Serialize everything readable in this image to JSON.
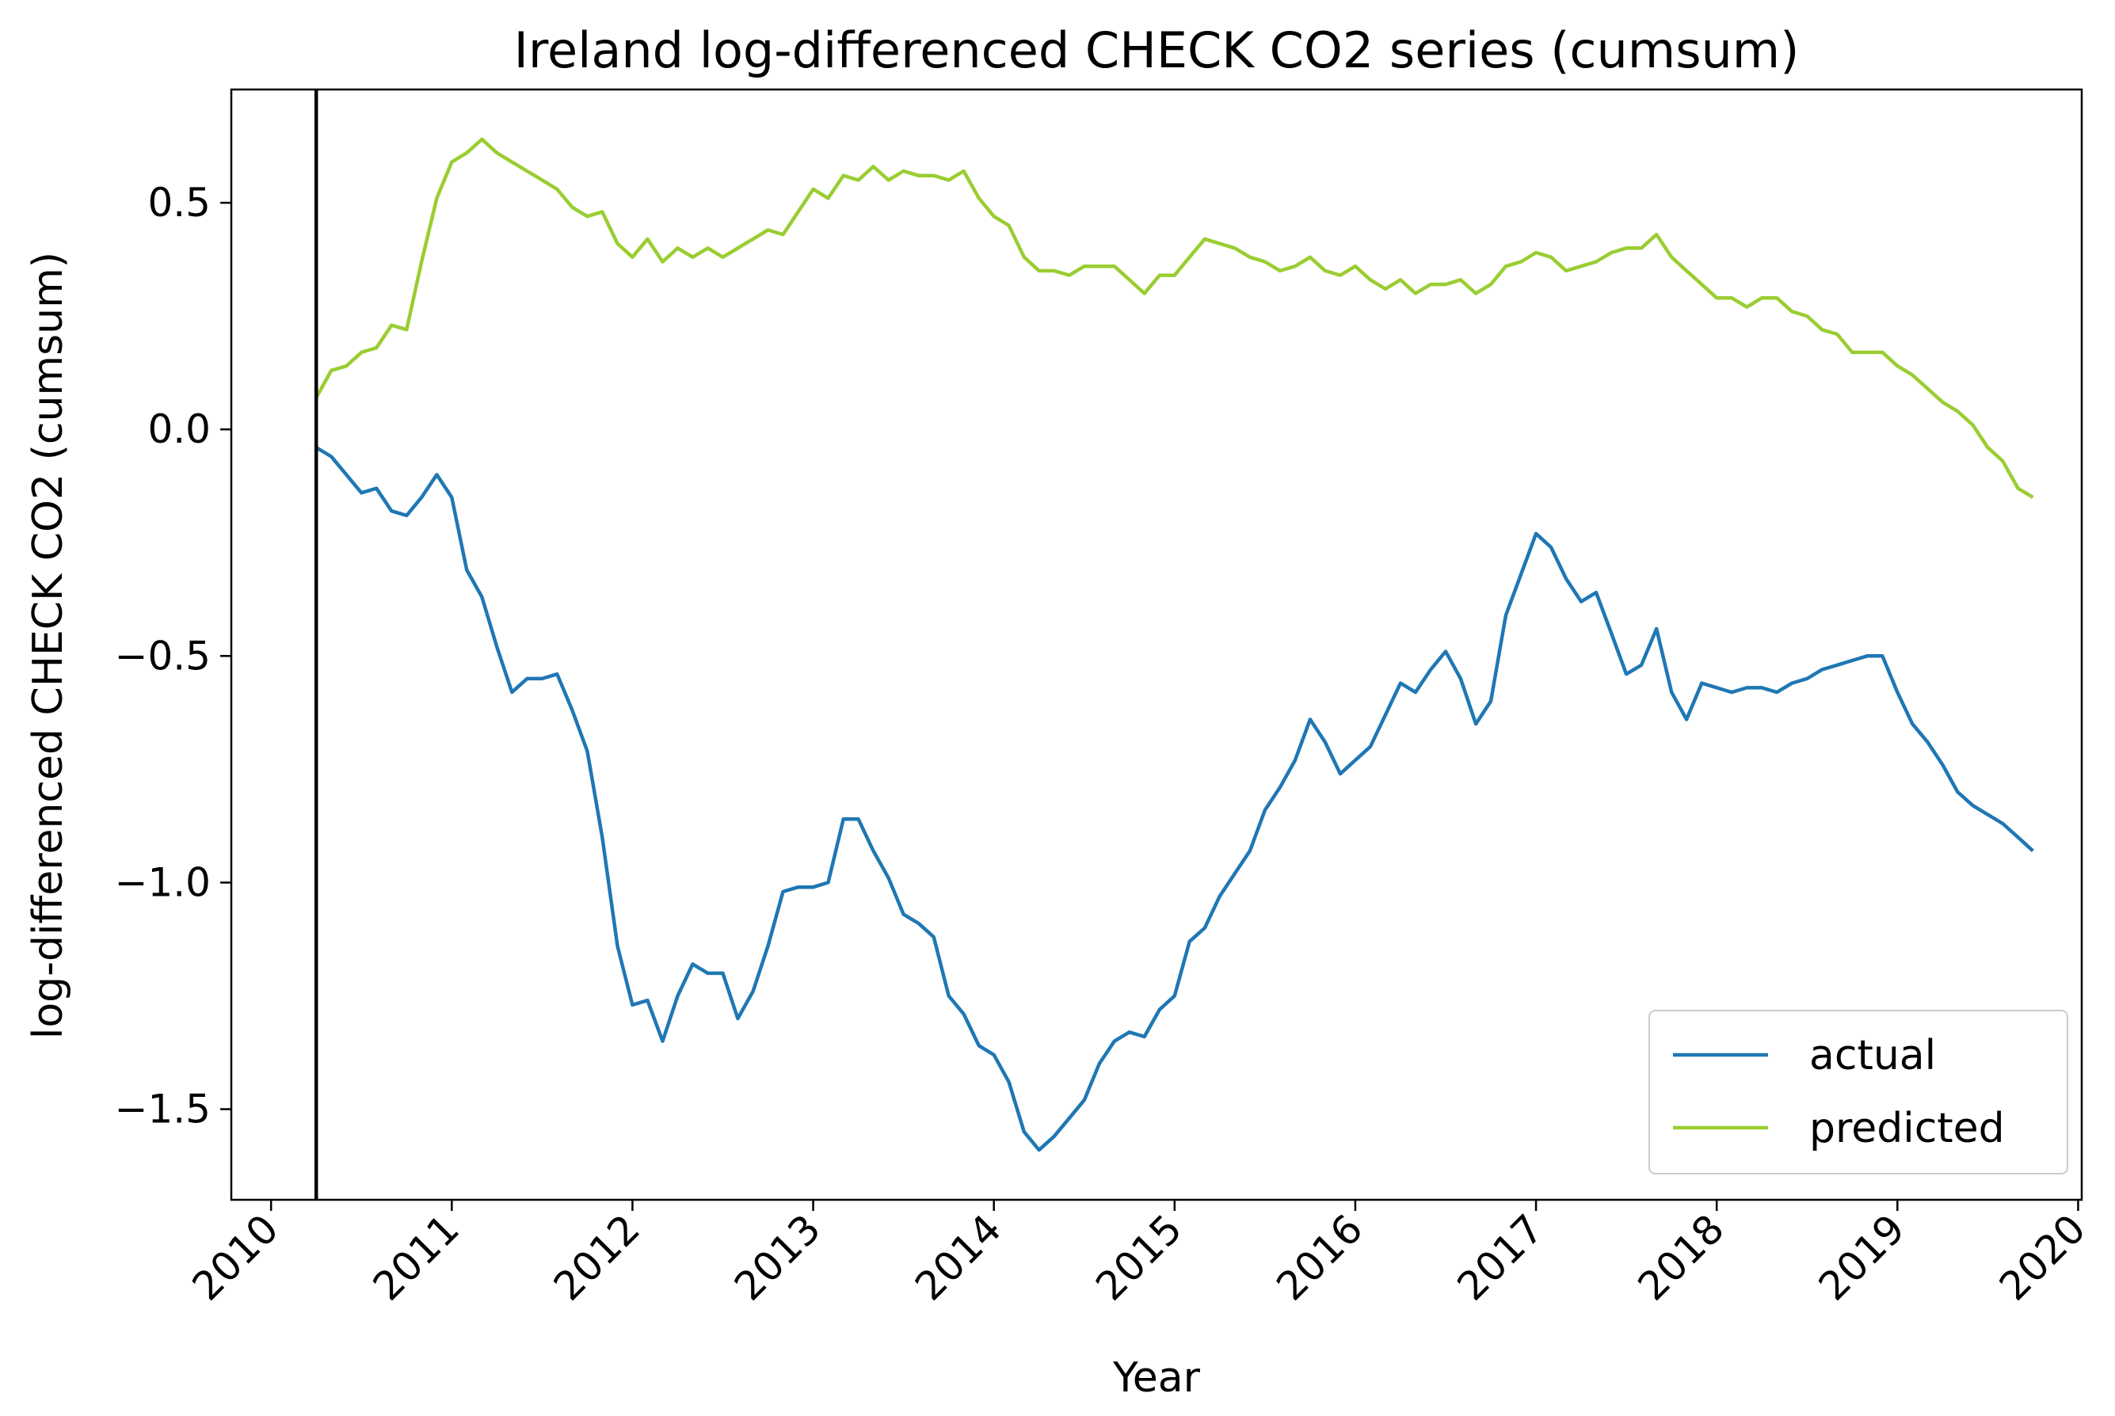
{
  "chart_data": {
    "type": "line",
    "title": "Ireland log-differenced CHECK CO2 series (cumsum)",
    "xlabel": "Year",
    "ylabel": "log-differenced CHECK CO2 (cumsum)",
    "xlim": [
      2009.78,
      2020.02
    ],
    "ylim": [
      -1.7,
      0.75
    ],
    "xticks": [
      2010,
      2011,
      2012,
      2013,
      2014,
      2015,
      2016,
      2017,
      2018,
      2019,
      2020
    ],
    "xtick_labels": [
      "2010",
      "2011",
      "2012",
      "2013",
      "2014",
      "2015",
      "2016",
      "2017",
      "2018",
      "2019",
      "2020"
    ],
    "yticks": [
      0.5,
      0.0,
      -0.5,
      -1.0,
      -1.5
    ],
    "ytick_labels": [
      "0.5",
      "0.0",
      "−0.5",
      "−1.0",
      "−1.5"
    ],
    "grid": false,
    "legend_position": "lower-right",
    "vline_x": 2010.25,
    "vline_color": "#000000",
    "x": [
      2010.25,
      2010.333,
      2010.417,
      2010.5,
      2010.583,
      2010.667,
      2010.75,
      2010.833,
      2010.917,
      2011.0,
      2011.083,
      2011.167,
      2011.25,
      2011.333,
      2011.417,
      2011.5,
      2011.583,
      2011.667,
      2011.75,
      2011.833,
      2011.917,
      2012.0,
      2012.083,
      2012.167,
      2012.25,
      2012.333,
      2012.417,
      2012.5,
      2012.583,
      2012.667,
      2012.75,
      2012.833,
      2012.917,
      2013.0,
      2013.083,
      2013.167,
      2013.25,
      2013.333,
      2013.417,
      2013.5,
      2013.583,
      2013.667,
      2013.75,
      2013.833,
      2013.917,
      2014.0,
      2014.083,
      2014.167,
      2014.25,
      2014.333,
      2014.417,
      2014.5,
      2014.583,
      2014.667,
      2014.75,
      2014.833,
      2014.917,
      2015.0,
      2015.083,
      2015.167,
      2015.25,
      2015.333,
      2015.417,
      2015.5,
      2015.583,
      2015.667,
      2015.75,
      2015.833,
      2015.917,
      2016.0,
      2016.083,
      2016.167,
      2016.25,
      2016.333,
      2016.417,
      2016.5,
      2016.583,
      2016.667,
      2016.75,
      2016.833,
      2016.917,
      2017.0,
      2017.083,
      2017.167,
      2017.25,
      2017.333,
      2017.417,
      2017.5,
      2017.583,
      2017.667,
      2017.75,
      2017.833,
      2017.917,
      2018.0,
      2018.083,
      2018.167,
      2018.25,
      2018.333,
      2018.417,
      2018.5,
      2018.583,
      2018.667,
      2018.75,
      2018.833,
      2018.917,
      2019.0,
      2019.083,
      2019.167,
      2019.25,
      2019.333,
      2019.417,
      2019.5,
      2019.583,
      2019.667,
      2019.75
    ],
    "series": [
      {
        "name": "actual",
        "color": "#1f77b4",
        "values": [
          -0.04,
          -0.06,
          -0.1,
          -0.14,
          -0.13,
          -0.18,
          -0.19,
          -0.15,
          -0.1,
          -0.15,
          -0.31,
          -0.37,
          -0.48,
          -0.58,
          -0.55,
          -0.55,
          -0.54,
          -0.62,
          -0.71,
          -0.9,
          -1.14,
          -1.27,
          -1.26,
          -1.35,
          -1.25,
          -1.18,
          -1.2,
          -1.2,
          -1.3,
          -1.24,
          -1.14,
          -1.02,
          -1.01,
          -1.01,
          -1.0,
          -0.86,
          -0.86,
          -0.93,
          -0.99,
          -1.07,
          -1.09,
          -1.12,
          -1.25,
          -1.29,
          -1.36,
          -1.38,
          -1.44,
          -1.55,
          -1.59,
          -1.56,
          -1.52,
          -1.48,
          -1.4,
          -1.35,
          -1.33,
          -1.34,
          -1.28,
          -1.25,
          -1.13,
          -1.1,
          -1.03,
          -0.98,
          -0.93,
          -0.84,
          -0.79,
          -0.73,
          -0.64,
          -0.69,
          -0.76,
          -0.73,
          -0.7,
          -0.63,
          -0.56,
          -0.58,
          -0.53,
          -0.49,
          -0.55,
          -0.65,
          -0.6,
          -0.41,
          -0.32,
          -0.23,
          -0.26,
          -0.33,
          -0.38,
          -0.36,
          -0.45,
          -0.54,
          -0.52,
          -0.44,
          -0.58,
          -0.64,
          -0.56,
          -0.57,
          -0.58,
          -0.57,
          -0.57,
          -0.58,
          -0.56,
          -0.55,
          -0.53,
          -0.52,
          -0.51,
          -0.5,
          -0.5,
          -0.58,
          -0.65,
          -0.69,
          -0.74,
          -0.8,
          -0.83,
          -0.85,
          -0.87,
          -0.9,
          -0.93
        ]
      },
      {
        "name": "predicted",
        "color": "#9acd32",
        "values": [
          0.07,
          0.13,
          0.14,
          0.17,
          0.18,
          0.23,
          0.22,
          0.37,
          0.51,
          0.59,
          0.61,
          0.64,
          0.61,
          0.59,
          0.57,
          0.55,
          0.53,
          0.49,
          0.47,
          0.48,
          0.41,
          0.38,
          0.42,
          0.37,
          0.4,
          0.38,
          0.4,
          0.38,
          0.4,
          0.42,
          0.44,
          0.43,
          0.48,
          0.53,
          0.51,
          0.56,
          0.55,
          0.58,
          0.55,
          0.57,
          0.56,
          0.56,
          0.55,
          0.57,
          0.51,
          0.47,
          0.45,
          0.38,
          0.35,
          0.35,
          0.34,
          0.36,
          0.36,
          0.36,
          0.33,
          0.3,
          0.34,
          0.34,
          0.38,
          0.42,
          0.41,
          0.4,
          0.38,
          0.37,
          0.35,
          0.36,
          0.38,
          0.35,
          0.34,
          0.36,
          0.33,
          0.31,
          0.33,
          0.3,
          0.32,
          0.32,
          0.33,
          0.3,
          0.32,
          0.36,
          0.37,
          0.39,
          0.38,
          0.35,
          0.36,
          0.37,
          0.39,
          0.4,
          0.4,
          0.43,
          0.38,
          0.35,
          0.32,
          0.29,
          0.29,
          0.27,
          0.29,
          0.29,
          0.26,
          0.25,
          0.22,
          0.21,
          0.17,
          0.17,
          0.17,
          0.14,
          0.12,
          0.09,
          0.06,
          0.04,
          0.01,
          -0.04,
          -0.07,
          -0.13,
          -0.15
        ]
      }
    ]
  }
}
